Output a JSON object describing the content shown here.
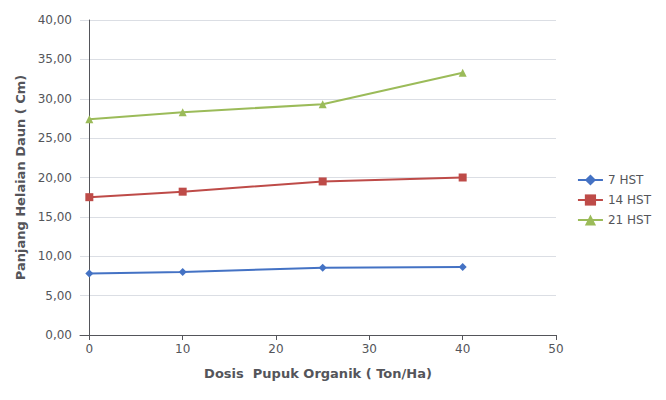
{
  "chart_data": {
    "type": "line",
    "x": [
      0,
      10,
      25,
      40
    ],
    "series": [
      {
        "name": "7 HST",
        "values": [
          7.8,
          8.0,
          8.55,
          8.65
        ],
        "color": "#4472C4",
        "marker": "diamond"
      },
      {
        "name": "14 HST",
        "values": [
          17.5,
          18.2,
          19.5,
          20.0
        ],
        "color": "#BE4B48",
        "marker": "square"
      },
      {
        "name": "21 HST",
        "values": [
          27.4,
          28.3,
          29.3,
          33.3
        ],
        "color": "#9BBB59",
        "marker": "triangle"
      }
    ],
    "xlabel": "Dosis  Pupuk Organik ( Ton/Ha)",
    "ylabel": "Panjang Helaian Daun ( Cm)",
    "xlim": [
      -1,
      50
    ],
    "xticks": [
      0,
      10,
      20,
      30,
      40,
      50
    ],
    "ylim": [
      0,
      40
    ],
    "yticks": [
      {
        "value": 0,
        "label": "0,00"
      },
      {
        "value": 5,
        "label": "5,00"
      },
      {
        "value": 10,
        "label": "10,00"
      },
      {
        "value": 15,
        "label": "15,00"
      },
      {
        "value": 20,
        "label": "20,00"
      },
      {
        "value": 25,
        "label": "25,00"
      },
      {
        "value": 30,
        "label": "30,00"
      },
      {
        "value": 35,
        "label": "35,00"
      },
      {
        "value": 40,
        "label": "40,00"
      }
    ],
    "grid": "y",
    "legend": "right"
  }
}
